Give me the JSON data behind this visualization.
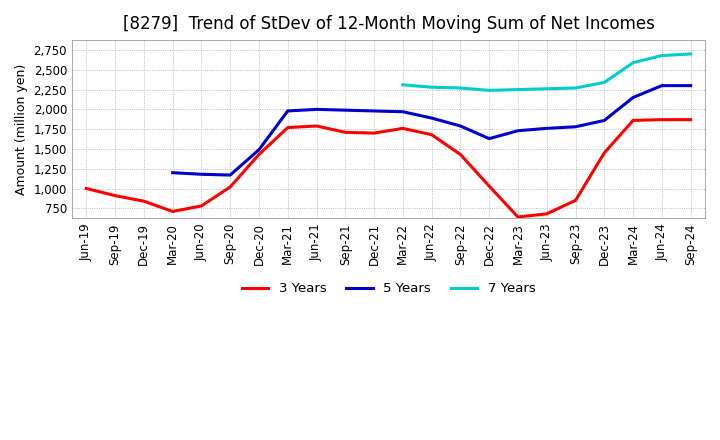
{
  "title": "[8279]  Trend of StDev of 12-Month Moving Sum of Net Incomes",
  "ylabel": "Amount (million yen)",
  "ylim": [
    625,
    2875
  ],
  "yticks": [
    750,
    1000,
    1250,
    1500,
    1750,
    2000,
    2250,
    2500,
    2750
  ],
  "background_color": "#ffffff",
  "grid_color": "#aaaaaa",
  "series": {
    "3 Years": {
      "color": "#ff0000",
      "data": [
        [
          "Jun-19",
          1000
        ],
        [
          "Sep-19",
          910
        ],
        [
          "Dec-19",
          840
        ],
        [
          "Mar-20",
          710
        ],
        [
          "Jun-20",
          780
        ],
        [
          "Sep-20",
          1020
        ],
        [
          "Dec-20",
          1430
        ],
        [
          "Mar-21",
          1770
        ],
        [
          "Jun-21",
          1790
        ],
        [
          "Sep-21",
          1710
        ],
        [
          "Dec-21",
          1700
        ],
        [
          "Mar-22",
          1760
        ],
        [
          "Jun-22",
          1680
        ],
        [
          "Sep-22",
          1430
        ],
        [
          "Dec-22",
          1030
        ],
        [
          "Mar-23",
          640
        ],
        [
          "Jun-23",
          680
        ],
        [
          "Sep-23",
          850
        ],
        [
          "Dec-23",
          1450
        ],
        [
          "Mar-24",
          1860
        ],
        [
          "Jun-24",
          1870
        ],
        [
          "Sep-24",
          1870
        ]
      ]
    },
    "5 Years": {
      "color": "#0000cc",
      "data": [
        [
          "Jun-19",
          null
        ],
        [
          "Sep-19",
          null
        ],
        [
          "Dec-19",
          null
        ],
        [
          "Mar-20",
          1200
        ],
        [
          "Jun-20",
          1180
        ],
        [
          "Sep-20",
          1170
        ],
        [
          "Dec-20",
          1490
        ],
        [
          "Mar-21",
          1980
        ],
        [
          "Jun-21",
          2000
        ],
        [
          "Sep-21",
          1990
        ],
        [
          "Dec-21",
          1980
        ],
        [
          "Mar-22",
          1970
        ],
        [
          "Jun-22",
          1890
        ],
        [
          "Sep-22",
          1790
        ],
        [
          "Dec-22",
          1630
        ],
        [
          "Mar-23",
          1730
        ],
        [
          "Jun-23",
          1760
        ],
        [
          "Sep-23",
          1780
        ],
        [
          "Dec-23",
          1860
        ],
        [
          "Mar-24",
          2150
        ],
        [
          "Jun-24",
          2300
        ],
        [
          "Sep-24",
          2300
        ]
      ]
    },
    "7 Years": {
      "color": "#00cccc",
      "data": [
        [
          "Jun-19",
          null
        ],
        [
          "Sep-19",
          null
        ],
        [
          "Dec-19",
          null
        ],
        [
          "Mar-20",
          null
        ],
        [
          "Jun-20",
          null
        ],
        [
          "Sep-20",
          null
        ],
        [
          "Dec-20",
          null
        ],
        [
          "Mar-21",
          null
        ],
        [
          "Jun-21",
          null
        ],
        [
          "Sep-21",
          null
        ],
        [
          "Dec-21",
          null
        ],
        [
          "Mar-22",
          2310
        ],
        [
          "Jun-22",
          2280
        ],
        [
          "Sep-22",
          2270
        ],
        [
          "Dec-22",
          2240
        ],
        [
          "Mar-23",
          2250
        ],
        [
          "Jun-23",
          2260
        ],
        [
          "Sep-23",
          2270
        ],
        [
          "Dec-23",
          2340
        ],
        [
          "Mar-24",
          2590
        ],
        [
          "Jun-24",
          2680
        ],
        [
          "Sep-24",
          2700
        ]
      ]
    },
    "10 Years": {
      "color": "#008800",
      "data": [
        [
          "Jun-19",
          null
        ],
        [
          "Sep-19",
          null
        ],
        [
          "Dec-19",
          null
        ],
        [
          "Mar-20",
          null
        ],
        [
          "Jun-20",
          null
        ],
        [
          "Sep-20",
          null
        ],
        [
          "Dec-20",
          null
        ],
        [
          "Mar-21",
          null
        ],
        [
          "Jun-21",
          null
        ],
        [
          "Sep-21",
          null
        ],
        [
          "Dec-21",
          null
        ],
        [
          "Mar-22",
          null
        ],
        [
          "Jun-22",
          null
        ],
        [
          "Sep-22",
          null
        ],
        [
          "Dec-22",
          null
        ],
        [
          "Mar-23",
          null
        ],
        [
          "Jun-23",
          null
        ],
        [
          "Sep-23",
          null
        ],
        [
          "Dec-23",
          null
        ],
        [
          "Mar-24",
          null
        ],
        [
          "Jun-24",
          null
        ],
        [
          "Sep-24",
          null
        ]
      ]
    }
  },
  "xtick_labels": [
    "Jun-19",
    "Sep-19",
    "Dec-19",
    "Mar-20",
    "Jun-20",
    "Sep-20",
    "Dec-20",
    "Mar-21",
    "Jun-21",
    "Sep-21",
    "Dec-21",
    "Mar-22",
    "Jun-22",
    "Sep-22",
    "Dec-22",
    "Mar-23",
    "Jun-23",
    "Sep-23",
    "Dec-23",
    "Mar-24",
    "Jun-24",
    "Sep-24"
  ],
  "title_fontsize": 12,
  "axis_fontsize": 9,
  "tick_fontsize": 8.5,
  "legend_fontsize": 9.5,
  "line_width": 2.2
}
